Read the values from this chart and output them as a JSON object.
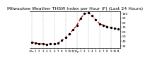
{
  "title": "Milwaukee Weather THSW Index per Hour (F) (Last 24 Hours)",
  "title_fontsize": 4.5,
  "background_color": "#ffffff",
  "line_color": "#cc0000",
  "dot_color": "#000000",
  "grid_color": "#888888",
  "ylim": [
    25,
    105
  ],
  "yticks": [
    30,
    40,
    50,
    60,
    70,
    80,
    90,
    100
  ],
  "ytick_fontsize": 3.2,
  "xtick_fontsize": 3.0,
  "hours": [
    0,
    1,
    2,
    3,
    4,
    5,
    6,
    7,
    8,
    9,
    10,
    11,
    12,
    13,
    14,
    15,
    16,
    17,
    18,
    19,
    20,
    21,
    22,
    23
  ],
  "values": [
    38,
    36,
    35,
    34,
    33,
    35,
    34,
    36,
    42,
    48,
    56,
    65,
    75,
    90,
    100,
    102,
    96,
    86,
    78,
    75,
    72,
    70,
    68,
    66
  ],
  "xlabel_hours": [
    "12a",
    "1",
    "2",
    "3",
    "4",
    "5",
    "6",
    "7",
    "8",
    "9",
    "10",
    "11",
    "12p",
    "1",
    "2",
    "3",
    "4",
    "5",
    "6",
    "7",
    "8",
    "9",
    "10",
    "11"
  ],
  "vgrid_positions": [
    0,
    3,
    6,
    9,
    12,
    15,
    18,
    21
  ]
}
